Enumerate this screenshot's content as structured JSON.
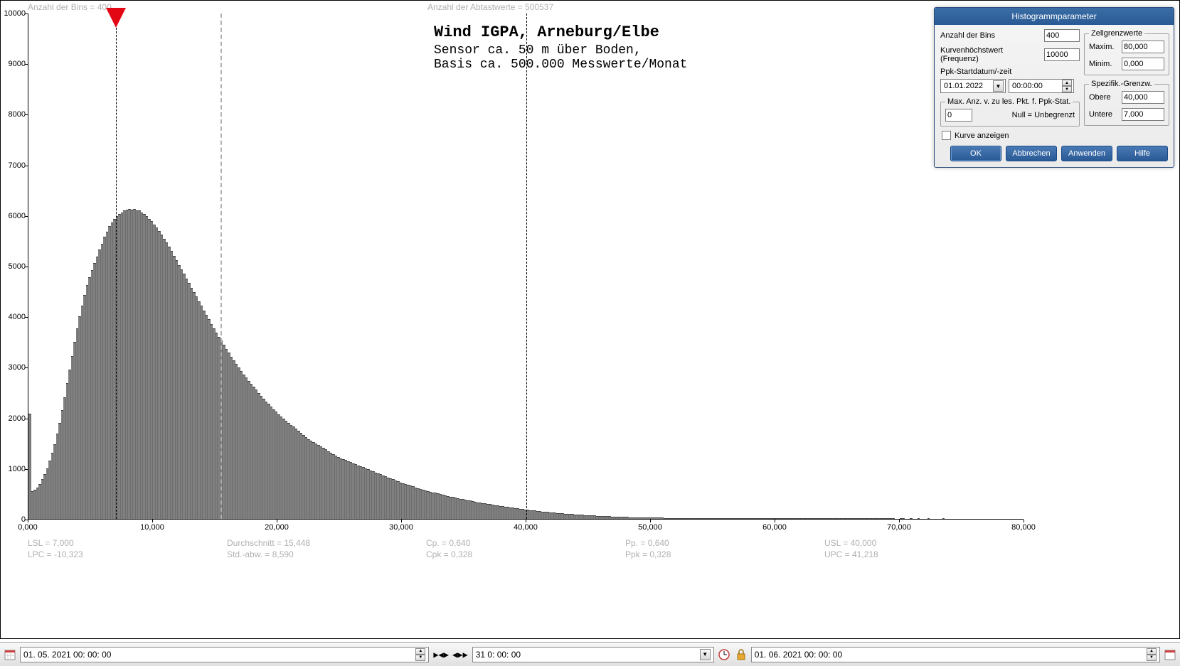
{
  "top_info": {
    "bins_label": "Anzahl der Bins =   400",
    "samples_label": "Anzahl der Abtastwerte = 500537"
  },
  "chart": {
    "type": "histogram",
    "title": "Wind  IGPA, Arneburg/Elbe",
    "subtitle1": "Sensor ca. 50 m über Boden,",
    "subtitle2": "Basis ca. 500.000 Messwerte/Monat",
    "xlim": [
      0,
      80
    ],
    "ylim": [
      0,
      10000
    ],
    "ytick_step": 1000,
    "xtick_step": 10,
    "x_decimal_format": ",000",
    "bar_color": "#808080",
    "background": "#ffffff",
    "n_bins": 400,
    "spec_lsl": 7.0,
    "spec_usl": 40.0,
    "mean_line_x": 15.448,
    "marker_x": 7.0,
    "marker_color": "#e30613",
    "values": [
      2080,
      550,
      580,
      620,
      690,
      780,
      880,
      1000,
      1150,
      1300,
      1480,
      1680,
      1900,
      2150,
      2400,
      2680,
      2950,
      3220,
      3500,
      3760,
      4000,
      4220,
      4420,
      4620,
      4780,
      4920,
      5050,
      5180,
      5320,
      5440,
      5570,
      5680,
      5780,
      5860,
      5930,
      5980,
      6030,
      6060,
      6090,
      6110,
      6120,
      6110,
      6130,
      6100,
      6090,
      6060,
      6020,
      5980,
      5930,
      5880,
      5820,
      5760,
      5690,
      5620,
      5540,
      5460,
      5380,
      5290,
      5200,
      5110,
      5020,
      4930,
      4840,
      4750,
      4660,
      4570,
      4480,
      4390,
      4300,
      4210,
      4120,
      4030,
      3940,
      3850,
      3760,
      3680,
      3600,
      3520,
      3440,
      3360,
      3280,
      3200,
      3130,
      3060,
      2990,
      2920,
      2850,
      2790,
      2730,
      2670,
      2610,
      2550,
      2490,
      2430,
      2370,
      2320,
      2270,
      2220,
      2170,
      2120,
      2070,
      2020,
      1980,
      1940,
      1900,
      1860,
      1820,
      1780,
      1740,
      1700,
      1660,
      1620,
      1580,
      1550,
      1520,
      1490,
      1460,
      1430,
      1400,
      1370,
      1340,
      1310,
      1280,
      1250,
      1220,
      1200,
      1180,
      1160,
      1140,
      1120,
      1100,
      1080,
      1060,
      1040,
      1020,
      1000,
      980,
      960,
      940,
      920,
      900,
      880,
      860,
      840,
      820,
      800,
      780,
      760,
      740,
      720,
      700,
      685,
      670,
      655,
      640,
      625,
      610,
      595,
      580,
      565,
      550,
      538,
      526,
      514,
      502,
      490,
      478,
      466,
      454,
      442,
      430,
      420,
      410,
      400,
      390,
      380,
      370,
      360,
      350,
      340,
      330,
      322,
      314,
      306,
      298,
      290,
      282,
      274,
      266,
      258,
      250,
      243,
      236,
      229,
      222,
      215,
      208,
      201,
      194,
      187,
      180,
      174,
      168,
      162,
      156,
      150,
      145,
      140,
      135,
      130,
      125,
      120,
      116,
      112,
      108,
      104,
      100,
      96,
      92,
      88,
      85,
      82,
      79,
      76,
      73,
      70,
      67,
      64,
      61,
      58,
      56,
      54,
      52,
      50,
      48,
      46,
      44,
      42,
      40,
      38,
      36,
      35,
      34,
      33,
      32,
      31,
      30,
      29,
      28,
      27,
      26,
      25,
      24,
      23,
      22,
      21,
      20,
      19,
      18,
      18,
      17,
      17,
      16,
      16,
      15,
      15,
      14,
      14,
      13,
      13,
      12,
      12,
      11,
      11,
      10,
      10,
      10,
      9,
      9,
      9,
      8,
      8,
      8,
      7,
      7,
      7,
      7,
      6,
      6,
      6,
      6,
      5,
      5,
      5,
      5,
      5,
      4,
      4,
      4,
      4,
      4,
      4,
      3,
      3,
      3,
      3,
      3,
      3,
      3,
      3,
      2,
      2,
      2,
      2,
      2,
      2,
      2,
      2,
      2,
      2,
      2,
      2,
      2,
      1,
      1,
      1,
      1,
      1,
      1,
      1,
      1,
      1,
      1,
      1,
      1,
      1,
      1,
      1,
      1,
      1,
      1,
      1,
      1,
      1,
      1,
      1,
      1,
      1,
      0,
      0,
      1,
      1,
      0,
      0,
      1,
      0,
      0,
      1,
      0,
      0,
      0,
      1,
      0,
      0,
      0,
      0,
      0,
      1,
      0,
      0,
      0,
      0,
      0,
      0,
      0,
      0,
      0,
      0,
      0,
      0,
      0,
      0,
      0,
      0,
      0,
      0,
      0,
      0,
      0,
      0,
      0,
      0,
      0,
      0,
      0,
      0,
      0,
      0,
      0,
      0
    ]
  },
  "stats": {
    "row1": {
      "lsl": "LSL = 7,000",
      "mean": "Durchschnitt = 15,448",
      "cp": "Cp. = 0,640",
      "pp": "Pp. = 0,640",
      "usl": "USL = 40,000"
    },
    "row2": {
      "lpc": "LPC = -10,323",
      "std": "Std.-abw. = 8,590",
      "cpk": "Cpk = 0,328",
      "ppk": "Ppk = 0,328",
      "upc": "UPC = 41,218"
    }
  },
  "dialog": {
    "title": "Histogrammparameter",
    "bins_label": "Anzahl der Bins",
    "bins_value": "400",
    "freq_label": "Kurvenhöchstwert (Frequenz)",
    "freq_value": "10000",
    "ppk_label": "Ppk-Startdatum/-zeit",
    "date_value": "01.01.2022",
    "time_value": "00:00:00",
    "maxpts_legend": "Max. Anz. v. zu les. Pkt. f. Ppk-Stat.",
    "maxpts_value": "0",
    "maxpts_note": "Null = Unbegrenzt",
    "show_curve_label": "Kurve anzeigen",
    "cell_legend": "Zellgrenzwerte",
    "max_label": "Maxim.",
    "max_value": "80,000",
    "min_label": "Minim.",
    "min_value": "0,000",
    "spec_legend": "Spezifik.-Grenzw.",
    "upper_label": "Obere",
    "upper_value": "40,000",
    "lower_label": "Untere",
    "lower_value": "7,000",
    "btn_ok": "OK",
    "btn_cancel": "Abbrechen",
    "btn_apply": "Anwenden",
    "btn_help": "Hilfe"
  },
  "toolbar": {
    "start_date": "01. 05. 2021   00: 00: 00",
    "duration": "31  0: 00: 00",
    "end_date": "01. 06. 2021   00: 00: 00",
    "nav1": "▶◀▶",
    "nav2": "◀▶▶"
  },
  "xticks": [
    "0,000",
    "10,000",
    "20,000",
    "30,000",
    "40,000",
    "50,000",
    "60,000",
    "70,000",
    "80,000"
  ]
}
